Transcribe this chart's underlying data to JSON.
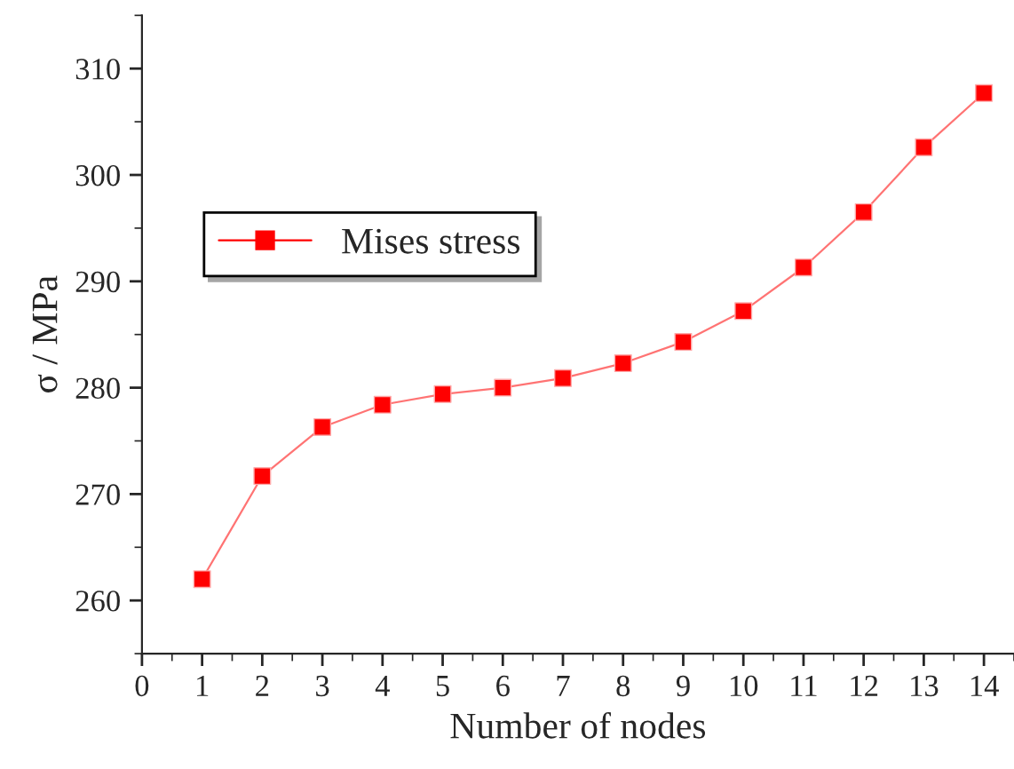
{
  "chart_data": {
    "type": "line",
    "xlabel": "Number of nodes",
    "ylabel": "σ / MPa",
    "x": [
      1,
      2,
      3,
      4,
      5,
      6,
      7,
      8,
      9,
      10,
      11,
      12,
      13,
      14
    ],
    "series": [
      {
        "name": "Mises stress",
        "color": "#ff0000",
        "values": [
          262.0,
          271.7,
          276.3,
          278.4,
          279.4,
          280.0,
          280.9,
          282.3,
          284.3,
          287.2,
          291.3,
          296.5,
          302.6,
          307.7
        ]
      }
    ],
    "xlim": [
      0,
      14.5
    ],
    "xticks": [
      0,
      1,
      2,
      3,
      4,
      5,
      6,
      7,
      8,
      9,
      10,
      11,
      12,
      13,
      14
    ],
    "ylim": [
      255,
      315
    ],
    "yticks": [
      260,
      270,
      280,
      290,
      300,
      310
    ],
    "marker": "square",
    "line_style": "solid",
    "legend": "top left",
    "grid": false
  }
}
